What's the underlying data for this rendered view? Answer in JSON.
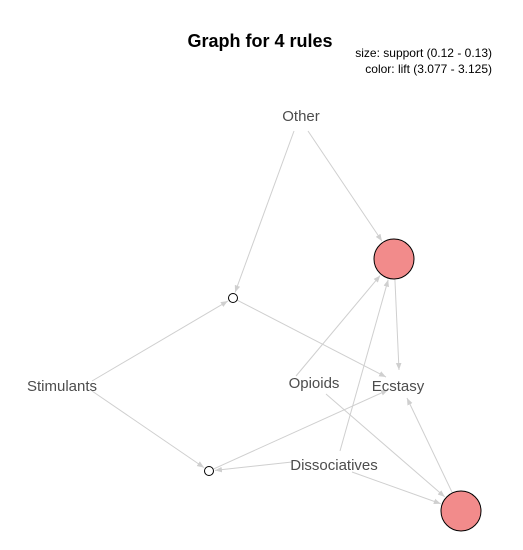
{
  "title": "Graph for 4 rules",
  "legend": {
    "size": "size: support (0.12 - 0.13)",
    "color": "color: lift (3.077 - 3.125)"
  },
  "colors": {
    "rule_fill": "#f28b8b",
    "edge": "#cfcfcf",
    "label": "#4d4d4d"
  },
  "chart_data": {
    "type": "network",
    "items": [
      {
        "id": "other",
        "label": "Other"
      },
      {
        "id": "stimulants",
        "label": "Stimulants"
      },
      {
        "id": "opioids",
        "label": "Opioids"
      },
      {
        "id": "ecstasy",
        "label": "Ecstasy"
      },
      {
        "id": "dissociatives",
        "label": "Dissociatives"
      }
    ],
    "rules": [
      {
        "id": "rule-1",
        "lhs": [
          "other",
          "stimulants"
        ],
        "rhs": [
          "ecstasy"
        ],
        "size": "small"
      },
      {
        "id": "rule-2",
        "lhs": [
          "other",
          "opioids",
          "dissociatives"
        ],
        "rhs": [
          "ecstasy"
        ],
        "size": "large"
      },
      {
        "id": "rule-3",
        "lhs": [
          "stimulants",
          "dissociatives"
        ],
        "rhs": [
          "ecstasy"
        ],
        "size": "small"
      },
      {
        "id": "rule-4",
        "lhs": [
          "opioids",
          "dissociatives"
        ],
        "rhs": [
          "ecstasy"
        ],
        "size": "large"
      }
    ]
  }
}
